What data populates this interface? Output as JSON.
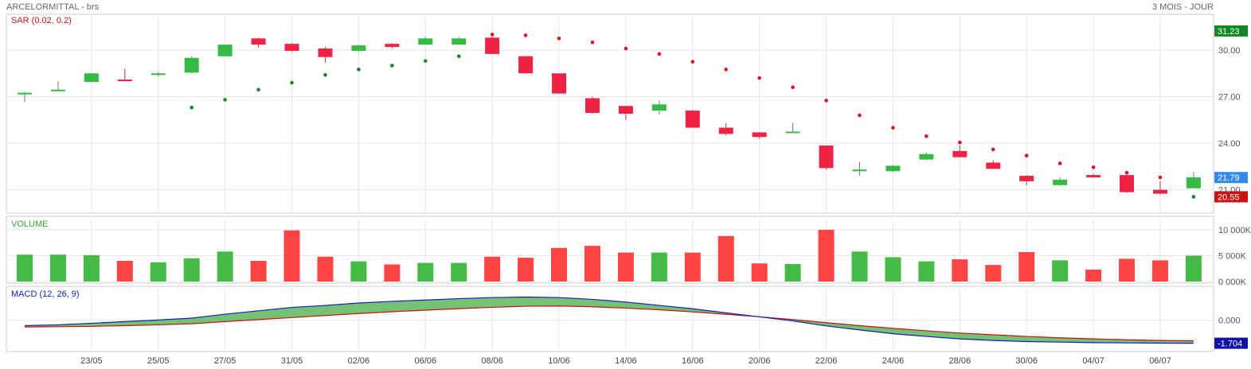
{
  "header": {
    "instrument": "ARCELORMITTAL - brs",
    "period": "3 MOIS - JOUR"
  },
  "colors": {
    "up": "#33bb44",
    "down": "#ee2244",
    "sar_up": "#118822",
    "sar_down": "#dd1122",
    "macd": "#1122bb",
    "signal": "#cc1111",
    "hist": "#66bb66",
    "grid": "#e6e6e6"
  },
  "x_ticks": [
    "23/05",
    "25/05",
    "27/05",
    "31/05",
    "02/06",
    "06/06",
    "08/06",
    "10/06",
    "14/06",
    "16/06",
    "20/06",
    "22/06",
    "24/06",
    "28/06",
    "30/06",
    "04/07",
    "06/07"
  ],
  "chart_data": [
    {
      "type": "candlestick",
      "legend": "SAR (0.02, 0.2)",
      "y_ticks": [
        "30.00",
        "27.00",
        "24.00",
        "21.00"
      ],
      "ylim": [
        19.6,
        32.2
      ],
      "ohlc": [
        [
          27.15,
          27.25,
          26.65,
          27.3
        ],
        [
          27.4,
          27.45,
          27.4,
          28.0
        ],
        [
          27.95,
          28.5,
          27.9,
          28.5
        ],
        [
          28.1,
          28.05,
          28.0,
          28.8
        ],
        [
          28.4,
          28.5,
          28.3,
          28.6
        ],
        [
          28.55,
          29.5,
          28.5,
          29.6
        ],
        [
          29.6,
          30.35,
          29.6,
          30.35
        ],
        [
          30.75,
          30.35,
          30.15,
          30.8
        ],
        [
          30.4,
          29.95,
          29.9,
          30.45
        ],
        [
          30.1,
          29.55,
          29.2,
          30.2
        ],
        [
          29.95,
          30.3,
          29.9,
          30.35
        ],
        [
          30.4,
          30.2,
          30.1,
          30.45
        ],
        [
          30.35,
          30.75,
          30.35,
          30.85
        ],
        [
          30.35,
          30.75,
          30.35,
          30.85
        ],
        [
          30.8,
          29.75,
          29.75,
          30.85
        ],
        [
          29.6,
          28.5,
          28.5,
          29.65
        ],
        [
          28.5,
          27.2,
          27.2,
          28.5
        ],
        [
          26.9,
          25.95,
          25.9,
          27.0
        ],
        [
          26.4,
          25.9,
          25.5,
          26.4
        ],
        [
          26.1,
          26.5,
          25.85,
          26.75
        ],
        [
          26.1,
          25.0,
          25.0,
          26.15
        ],
        [
          25.0,
          24.6,
          24.5,
          25.3
        ],
        [
          24.7,
          24.4,
          24.3,
          24.7
        ],
        [
          24.75,
          24.75,
          24.75,
          25.3
        ],
        [
          23.85,
          22.4,
          22.3,
          23.85
        ],
        [
          22.3,
          22.3,
          21.9,
          22.8
        ],
        [
          22.2,
          22.55,
          22.15,
          22.6
        ],
        [
          22.95,
          23.3,
          22.9,
          23.4
        ],
        [
          23.5,
          23.1,
          23.1,
          23.85
        ],
        [
          22.75,
          22.35,
          22.35,
          22.9
        ],
        [
          21.9,
          21.55,
          21.3,
          21.95
        ],
        [
          21.3,
          21.65,
          21.25,
          21.8
        ],
        [
          21.95,
          21.8,
          21.8,
          22.05
        ],
        [
          21.95,
          20.85,
          20.8,
          21.95
        ],
        [
          21.0,
          20.75,
          20.7,
          21.55
        ],
        [
          21.1,
          21.8,
          21.1,
          22.15
        ]
      ],
      "sar": [
        null,
        null,
        null,
        null,
        null,
        26.3,
        26.8,
        27.45,
        27.9,
        28.4,
        28.75,
        29.0,
        29.3,
        29.6,
        31.0,
        30.95,
        30.75,
        30.5,
        30.1,
        29.75,
        29.25,
        28.75,
        28.2,
        27.6,
        26.75,
        25.8,
        25.0,
        24.45,
        24.05,
        23.6,
        23.2,
        22.7,
        22.45,
        22.1,
        21.8,
        20.55
      ],
      "price_labels": [
        {
          "text": "31.23",
          "value": 31.23,
          "color": "#118822"
        },
        {
          "text": "21.79",
          "value": 21.79,
          "color": "#3388ee"
        },
        {
          "text": "20.55",
          "value": 20.55,
          "color": "#cc1111"
        }
      ]
    },
    {
      "type": "bar",
      "legend": "VOLUME",
      "y_ticks": [
        "10 000K",
        "5 000K",
        "0 000K"
      ],
      "ylim": [
        0,
        12000
      ],
      "values": [
        5200,
        5200,
        5100,
        4000,
        3700,
        4500,
        5800,
        4000,
        9900,
        4800,
        3900,
        3300,
        3600,
        3600,
        4800,
        4600,
        6500,
        6900,
        5600,
        5600,
        5600,
        8800,
        3500,
        3400,
        10000,
        5800,
        4700,
        3900,
        4300,
        3200,
        5700,
        4100,
        2300,
        4400,
        4100,
        5000
      ]
    },
    {
      "type": "line",
      "legend": "MACD (12, 26, 9)",
      "y_ticks": [
        "0.000"
      ],
      "ylim": [
        -2.2,
        2.4
      ],
      "macd": [
        -0.4,
        -0.34,
        -0.22,
        -0.1,
        0.02,
        0.16,
        0.45,
        0.7,
        0.95,
        1.1,
        1.28,
        1.4,
        1.5,
        1.6,
        1.68,
        1.72,
        1.68,
        1.55,
        1.35,
        1.1,
        0.85,
        0.55,
        0.25,
        -0.05,
        -0.42,
        -0.72,
        -1.0,
        -1.2,
        -1.38,
        -1.5,
        -1.58,
        -1.62,
        -1.66,
        -1.68,
        -1.7,
        -1.704
      ],
      "signal": [
        -0.5,
        -0.48,
        -0.45,
        -0.4,
        -0.34,
        -0.26,
        -0.1,
        0.05,
        0.2,
        0.35,
        0.5,
        0.63,
        0.75,
        0.86,
        0.96,
        1.04,
        1.06,
        1.0,
        0.9,
        0.78,
        0.62,
        0.44,
        0.26,
        0.05,
        -0.18,
        -0.4,
        -0.6,
        -0.78,
        -0.95,
        -1.08,
        -1.2,
        -1.3,
        -1.38,
        -1.45,
        -1.5,
        -1.52
      ],
      "value_labels": [
        {
          "text": "-1.704",
          "value": -1.704
        }
      ]
    }
  ]
}
